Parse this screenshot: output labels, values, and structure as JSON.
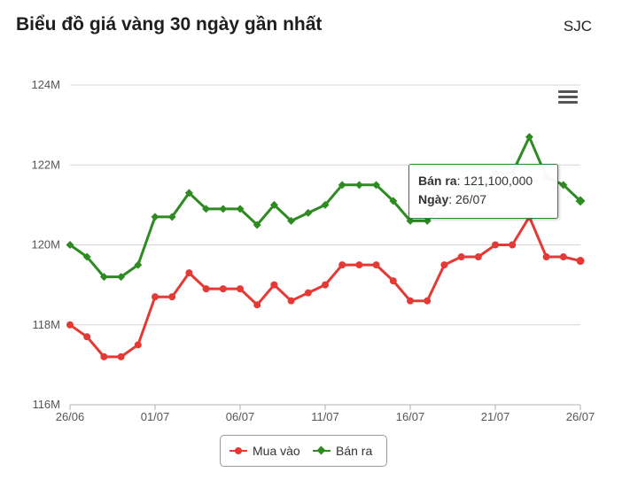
{
  "header": {
    "title": "Biểu đồ giá vàng 30 ngày gần nhất",
    "brand": "SJC"
  },
  "chart_data": {
    "type": "line",
    "y_tick_labels": [
      "116M",
      "118M",
      "120M",
      "122M",
      "124M"
    ],
    "y_ticks": [
      116000000,
      118000000,
      120000000,
      122000000,
      124000000
    ],
    "ylim": [
      116000000,
      124000000
    ],
    "x_tick_labels": [
      "26/06",
      "01/07",
      "06/07",
      "11/07",
      "16/07",
      "21/07",
      "26/07"
    ],
    "categories": [
      "26/06",
      "27/06",
      "28/06",
      "29/06",
      "30/06",
      "01/07",
      "02/07",
      "03/07",
      "04/07",
      "05/07",
      "06/07",
      "07/07",
      "08/07",
      "09/07",
      "10/07",
      "11/07",
      "12/07",
      "13/07",
      "14/07",
      "15/07",
      "16/07",
      "17/07",
      "18/07",
      "19/07",
      "20/07",
      "21/07",
      "22/07",
      "23/07",
      "24/07",
      "25/07",
      "26/07"
    ],
    "grid": true,
    "legend_position": "bottom-center",
    "series": [
      {
        "name": "Mua vào",
        "color": "#e53935",
        "marker": "circle",
        "values": [
          118000000,
          117700000,
          117200000,
          117200000,
          117500000,
          118700000,
          118700000,
          119300000,
          118900000,
          118900000,
          118900000,
          118500000,
          119000000,
          118600000,
          118800000,
          119000000,
          119500000,
          119500000,
          119500000,
          119100000,
          118600000,
          118600000,
          119500000,
          119700000,
          119700000,
          120000000,
          120000000,
          120700000,
          119700000,
          119700000,
          119600000
        ]
      },
      {
        "name": "Bán ra",
        "color": "#2e8b22",
        "marker": "diamond",
        "values": [
          120000000,
          119700000,
          119200000,
          119200000,
          119500000,
          120700000,
          120700000,
          121300000,
          120900000,
          120900000,
          120900000,
          120500000,
          121000000,
          120600000,
          120800000,
          121000000,
          121500000,
          121500000,
          121500000,
          121100000,
          120600000,
          120600000,
          121100000,
          121300000,
          121400000,
          121800000,
          121800000,
          122700000,
          121700000,
          121500000,
          121100000
        ]
      }
    ],
    "tooltip": {
      "series_label": "Bán ra",
      "value_text": "121,100,000",
      "date_label": "Ngày",
      "date_text": "26/07"
    }
  },
  "menu_icon": "hamburger-menu-icon"
}
